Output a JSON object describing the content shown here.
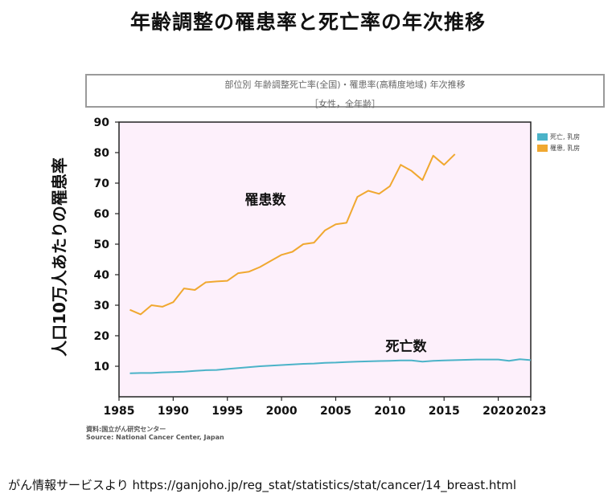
{
  "title": "年齢調整の罹患率と死亡率の年次推移",
  "footer_text": "がん情報サービスより https://ganjoho.jp/reg_stat/statistics/stat/cancer/14_breast.html",
  "chart_data": {
    "type": "line",
    "title": "部位別 年齢調整死亡率(全国)・罹患率(高精度地域) 年次推移",
    "subtitle": "［女性，全年齢］",
    "ylabel": "人口10万人あたりの罹患率",
    "xlabel": "",
    "xlim": [
      1985,
      2023
    ],
    "ylim": [
      0,
      90
    ],
    "x_ticks": [
      "1985",
      "1990",
      "1995",
      "2000",
      "2005",
      "2010",
      "2015",
      "2020",
      "2023"
    ],
    "y_ticks": [
      "10",
      "20",
      "30",
      "40",
      "50",
      "60",
      "70",
      "80",
      "90"
    ],
    "grid": false,
    "legend_position": "right",
    "background_color": "#fdf0fb",
    "annotations": [
      {
        "text": "罹患数",
        "x": 1998.5,
        "y": 63
      },
      {
        "text": "死亡数",
        "x": 2011.5,
        "y": 15
      }
    ],
    "series": [
      {
        "name": "死亡, 乳房",
        "color": "#4bb3c8",
        "x": [
          1986,
          1987,
          1988,
          1989,
          1990,
          1991,
          1992,
          1993,
          1994,
          1995,
          1996,
          1997,
          1998,
          1999,
          2000,
          2001,
          2002,
          2003,
          2004,
          2005,
          2006,
          2007,
          2008,
          2009,
          2010,
          2011,
          2012,
          2013,
          2014,
          2015,
          2016,
          2017,
          2018,
          2019,
          2020,
          2021,
          2022,
          2023
        ],
        "values": [
          7.7,
          7.8,
          7.8,
          8.0,
          8.1,
          8.2,
          8.5,
          8.7,
          8.8,
          9.1,
          9.4,
          9.7,
          10.0,
          10.2,
          10.4,
          10.6,
          10.8,
          10.9,
          11.1,
          11.2,
          11.4,
          11.5,
          11.6,
          11.7,
          11.8,
          11.9,
          11.9,
          11.5,
          11.8,
          11.9,
          12.0,
          12.1,
          12.2,
          12.2,
          12.2,
          11.8,
          12.3,
          12.0
        ]
      },
      {
        "name": "罹患, 乳房",
        "color": "#f0a830",
        "x": [
          1986,
          1987,
          1988,
          1989,
          1990,
          1991,
          1992,
          1993,
          1994,
          1995,
          1996,
          1997,
          1998,
          1999,
          2000,
          2001,
          2002,
          2003,
          2004,
          2005,
          2006,
          2007,
          2008,
          2009,
          2010,
          2011,
          2012,
          2013,
          2014,
          2015,
          2016
        ],
        "values": [
          28.5,
          27.0,
          30.0,
          29.5,
          31.0,
          35.5,
          35.0,
          37.5,
          37.8,
          38.0,
          40.5,
          41.0,
          42.5,
          44.5,
          46.5,
          47.5,
          50.0,
          50.5,
          54.5,
          56.5,
          57.0,
          65.5,
          67.5,
          66.5,
          69.0,
          76.0,
          74.0,
          71.0,
          79.0,
          76.0,
          79.5
        ]
      }
    ],
    "source": [
      "資料:国立がん研究センター",
      "Source: National Cancer Center, Japan"
    ]
  }
}
